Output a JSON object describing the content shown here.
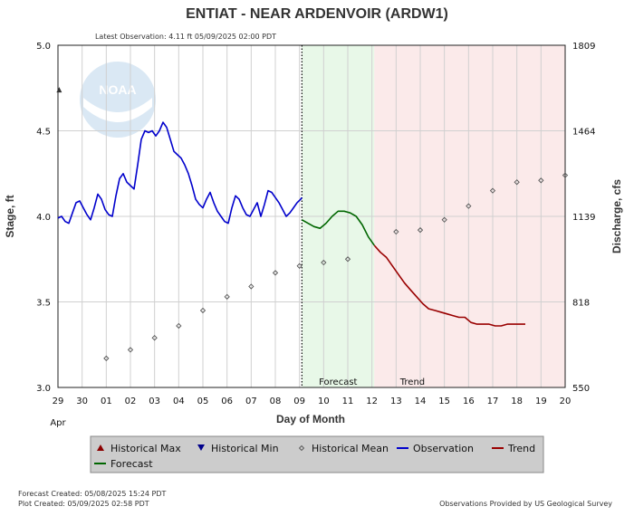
{
  "chart_data": {
    "type": "line",
    "title": "ENTIAT - NEAR ARDENVOIR  (ARDW1)",
    "subtitle": "Latest Observation: 4.11 ft 05/09/2025 02:00 PDT",
    "xlabel": "Day of Month",
    "x_month_label": "Apr",
    "ylabel_left": "Stage, ft",
    "ylabel_right": "Discharge, cfs",
    "xlim": [
      29,
      50
    ],
    "x_tick_values": [
      29,
      30,
      31,
      32,
      33,
      34,
      35,
      36,
      37,
      38,
      39,
      40,
      41,
      42,
      43,
      44,
      45,
      46,
      47,
      48,
      49,
      50
    ],
    "x_tick_labels": [
      "29",
      "30",
      "01",
      "02",
      "03",
      "04",
      "05",
      "06",
      "07",
      "08",
      "09",
      "10",
      "11",
      "12",
      "13",
      "14",
      "15",
      "16",
      "17",
      "18",
      "19",
      "20"
    ],
    "ylim_left": [
      3.0,
      5.0
    ],
    "y_left_ticks": [
      "3.0",
      "3.5",
      "4.0",
      "4.5",
      "5.0"
    ],
    "y_right_ticks": [
      "550",
      "818",
      "1139",
      "1464",
      "1809"
    ],
    "grid": true,
    "legend_position": "bottom",
    "bands": [
      {
        "name": "Forecast",
        "x_start": 39.1,
        "x_end": 42.1,
        "color": "#e8f8e8"
      },
      {
        "name": "Trend",
        "x_start": 42.1,
        "x_end": 50.0,
        "color": "#fbeaea"
      }
    ],
    "now_line_x": 39.1,
    "series": [
      {
        "name": "Observation",
        "color": "#0000cc",
        "x": [
          29.0,
          29.15,
          29.3,
          29.45,
          29.6,
          29.75,
          29.9,
          30.05,
          30.2,
          30.35,
          30.5,
          30.65,
          30.8,
          30.95,
          31.1,
          31.25,
          31.4,
          31.55,
          31.7,
          31.85,
          32.0,
          32.15,
          32.3,
          32.45,
          32.6,
          32.75,
          32.9,
          33.05,
          33.2,
          33.35,
          33.5,
          33.65,
          33.8,
          33.95,
          34.1,
          34.25,
          34.4,
          34.55,
          34.7,
          34.85,
          35.0,
          35.15,
          35.3,
          35.45,
          35.6,
          35.75,
          35.9,
          36.05,
          36.2,
          36.35,
          36.5,
          36.65,
          36.8,
          36.95,
          37.1,
          37.25,
          37.4,
          37.55,
          37.7,
          37.85,
          38.0,
          38.15,
          38.3,
          38.45,
          38.6,
          38.75,
          38.9,
          39.05,
          39.1
        ],
        "y": [
          3.99,
          4.0,
          3.97,
          3.96,
          4.02,
          4.08,
          4.09,
          4.05,
          4.01,
          3.98,
          4.05,
          4.13,
          4.1,
          4.04,
          4.01,
          4.0,
          4.12,
          4.22,
          4.25,
          4.2,
          4.18,
          4.16,
          4.3,
          4.45,
          4.5,
          4.49,
          4.5,
          4.47,
          4.5,
          4.55,
          4.52,
          4.45,
          4.38,
          4.36,
          4.34,
          4.3,
          4.25,
          4.18,
          4.1,
          4.07,
          4.05,
          4.1,
          4.14,
          4.08,
          4.03,
          4.0,
          3.97,
          3.96,
          4.05,
          4.12,
          4.1,
          4.05,
          4.01,
          4.0,
          4.04,
          4.08,
          4.0,
          4.07,
          4.15,
          4.14,
          4.11,
          4.08,
          4.04,
          4.0,
          4.02,
          4.05,
          4.08,
          4.1,
          4.11
        ]
      },
      {
        "name": "Forecast",
        "color": "#006600",
        "x": [
          39.1,
          39.35,
          39.6,
          39.85,
          40.1,
          40.35,
          40.6,
          40.85,
          41.1,
          41.35,
          41.6,
          41.85,
          42.1
        ],
        "y": [
          3.98,
          3.96,
          3.94,
          3.93,
          3.96,
          4.0,
          4.03,
          4.03,
          4.02,
          4.0,
          3.95,
          3.88,
          3.83
        ]
      },
      {
        "name": "Trend",
        "color": "#990000",
        "x": [
          42.1,
          42.35,
          42.6,
          42.85,
          43.1,
          43.35,
          43.6,
          43.85,
          44.1,
          44.35,
          44.6,
          44.85,
          45.1,
          45.35,
          45.6,
          45.85,
          46.1,
          46.35,
          46.6,
          46.85,
          47.1,
          47.35,
          47.6,
          47.85,
          48.1,
          48.35
        ],
        "y": [
          3.83,
          3.79,
          3.76,
          3.71,
          3.66,
          3.61,
          3.57,
          3.53,
          3.49,
          3.46,
          3.45,
          3.44,
          3.43,
          3.42,
          3.41,
          3.41,
          3.38,
          3.37,
          3.37,
          3.37,
          3.36,
          3.36,
          3.37,
          3.37,
          3.37,
          3.37
        ]
      }
    ],
    "historical_mean": {
      "name": "Historical Mean",
      "x": [
        31,
        32,
        33,
        34,
        35,
        36,
        37,
        38,
        39,
        40,
        41,
        43,
        44,
        45,
        46,
        47,
        48,
        49,
        50
      ],
      "y": [
        3.17,
        3.22,
        3.29,
        3.36,
        3.45,
        3.53,
        3.59,
        3.67,
        3.71,
        3.73,
        3.75,
        3.91,
        3.92,
        3.98,
        4.06,
        4.15,
        4.2,
        4.21,
        4.24
      ]
    },
    "historical_max": {
      "name": "Historical Max",
      "x": 29.05,
      "y": 4.74
    },
    "legend": [
      {
        "label": "Historical Max",
        "symbol": "triangle-up",
        "color": "#8b0000"
      },
      {
        "label": "Historical Min",
        "symbol": "triangle-down",
        "color": "#00008b"
      },
      {
        "label": "Historical Mean",
        "symbol": "diamond",
        "color": "#555555"
      },
      {
        "label": "Observation",
        "symbol": "line",
        "color": "#0000cc"
      },
      {
        "label": "Trend",
        "symbol": "line",
        "color": "#990000"
      },
      {
        "label": "Forecast",
        "symbol": "line",
        "color": "#006600"
      }
    ],
    "logo_text": "NOAA"
  },
  "footer": {
    "forecast_created": "Forecast Created: 05/08/2025 15:24 PDT",
    "plot_created": "Plot Created: 05/09/2025 02:58 PDT",
    "provider": "Observations Provided by US Geological Survey"
  }
}
